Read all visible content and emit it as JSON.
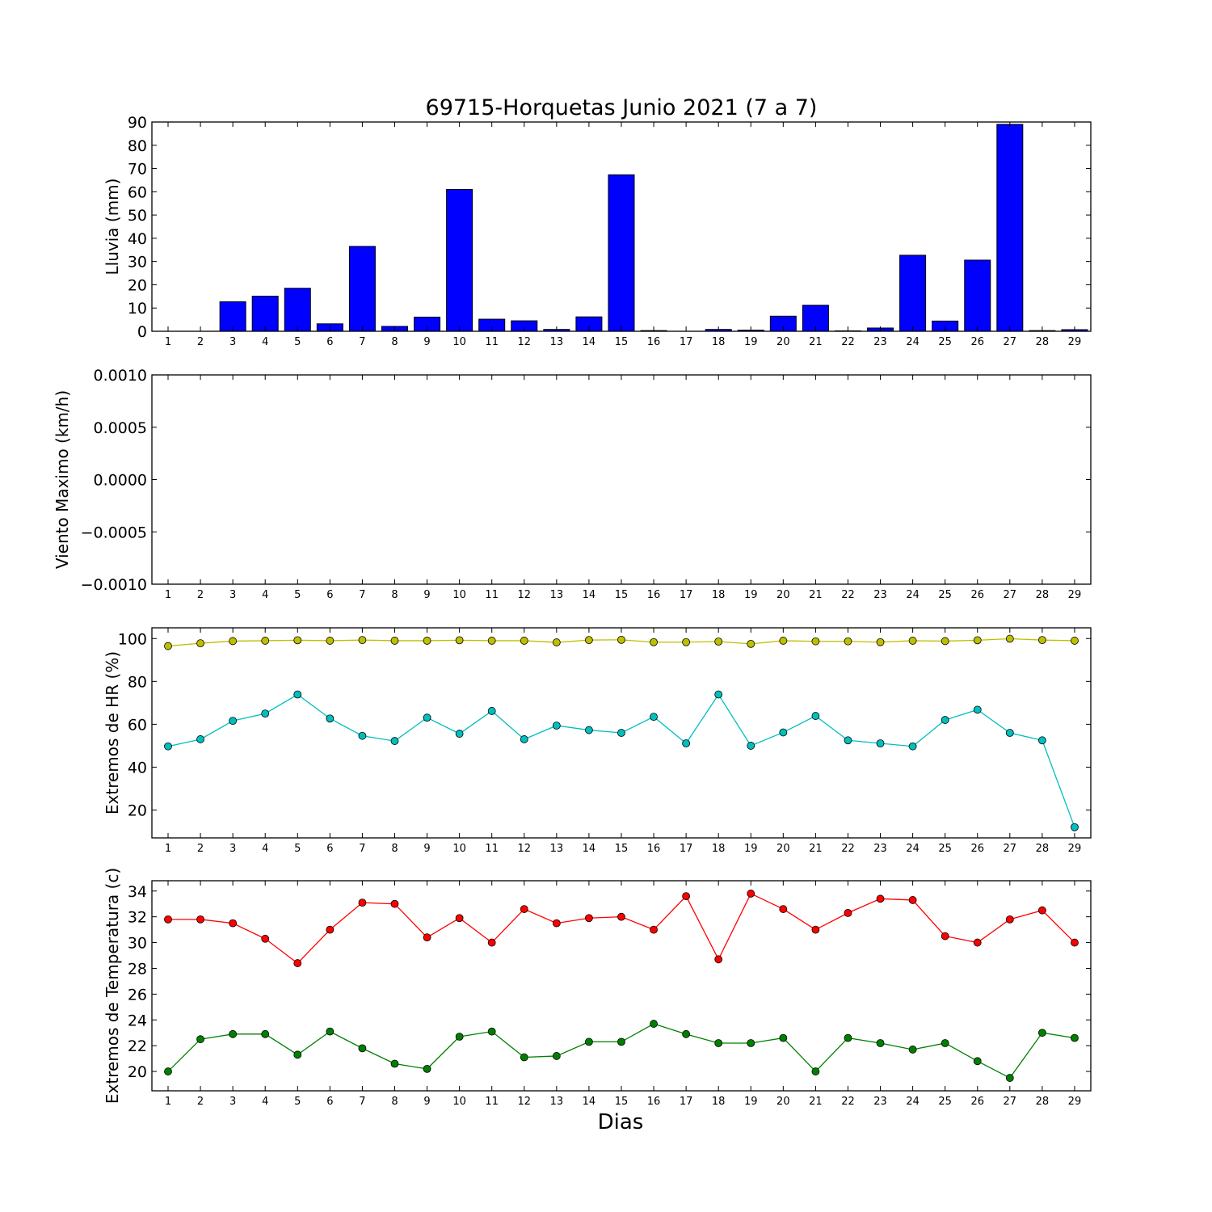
{
  "figure": {
    "title": "69715-Horquetas Junio 2021  (7 a 7)",
    "xlabel": "Dias"
  },
  "colors": {
    "rain_bar": "#0000ff",
    "hr_max": "#bfbf00",
    "hr_min": "#00bfbf",
    "temp_max": "#ff0000",
    "temp_min": "#008000"
  },
  "chart_data": [
    {
      "type": "bar",
      "ylabel": "Lluvia (mm)",
      "categories": [
        "1",
        "2",
        "3",
        "4",
        "5",
        "6",
        "7",
        "8",
        "9",
        "10",
        "11",
        "12",
        "13",
        "14",
        "15",
        "16",
        "17",
        "18",
        "19",
        "20",
        "21",
        "22",
        "23",
        "24",
        "25",
        "26",
        "27",
        "28",
        "29"
      ],
      "values": [
        0,
        0,
        12.7,
        15.1,
        18.5,
        3.2,
        36.5,
        2.1,
        6.1,
        61,
        5.2,
        4.5,
        0.8,
        6.2,
        67.3,
        0.3,
        0,
        0.8,
        0.5,
        6.5,
        11.2,
        0.2,
        1.4,
        32.7,
        4.4,
        30.6,
        89,
        0.3,
        0.7
      ],
      "ylim": [
        0,
        90
      ],
      "yticks": [
        0,
        10,
        20,
        30,
        40,
        50,
        60,
        70,
        80,
        90
      ]
    },
    {
      "type": "line",
      "ylabel": "Viento Maximo (km/h)",
      "categories": [
        "1",
        "2",
        "3",
        "4",
        "5",
        "6",
        "7",
        "8",
        "9",
        "10",
        "11",
        "12",
        "13",
        "14",
        "15",
        "16",
        "17",
        "18",
        "19",
        "20",
        "21",
        "22",
        "23",
        "24",
        "25",
        "26",
        "27",
        "28",
        "29"
      ],
      "series": [],
      "ylim": [
        -0.001,
        0.001
      ],
      "yticks": [
        "−0.0010",
        "−0.0005",
        "0.0000",
        "0.0005",
        "0.0010"
      ]
    },
    {
      "type": "line",
      "ylabel": "Extremos de HR (%)",
      "categories": [
        "1",
        "2",
        "3",
        "4",
        "5",
        "6",
        "7",
        "8",
        "9",
        "10",
        "11",
        "12",
        "13",
        "14",
        "15",
        "16",
        "17",
        "18",
        "19",
        "20",
        "21",
        "22",
        "23",
        "24",
        "25",
        "26",
        "27",
        "28",
        "29"
      ],
      "series": [
        {
          "color": "#bfbf00",
          "values": [
            96.5,
            97.8,
            98.8,
            99,
            99.2,
            99,
            99.3,
            99,
            99,
            99.2,
            99,
            99,
            98.2,
            99.3,
            99.4,
            98.3,
            98.3,
            98.6,
            97.5,
            99,
            98.7,
            98.7,
            98.3,
            99,
            98.8,
            99.2,
            99.9,
            99.3,
            99
          ]
        },
        {
          "color": "#00bfbf",
          "values": [
            49.7,
            53,
            61.6,
            65,
            73.9,
            62.7,
            54.6,
            52.2,
            63.1,
            55.6,
            66.2,
            53,
            59.4,
            57.3,
            56,
            63.5,
            51.1,
            73.9,
            50,
            56.2,
            63.9,
            52.5,
            51.1,
            49.7,
            62,
            66.8,
            56,
            52.5,
            12
          ]
        }
      ],
      "ylim": [
        7,
        105
      ],
      "yticks": [
        20,
        40,
        60,
        80,
        100
      ]
    },
    {
      "type": "line",
      "ylabel": "Extremos de Temperatura (c)",
      "categories": [
        "1",
        "2",
        "3",
        "4",
        "5",
        "6",
        "7",
        "8",
        "9",
        "10",
        "11",
        "12",
        "13",
        "14",
        "15",
        "16",
        "17",
        "18",
        "19",
        "20",
        "21",
        "22",
        "23",
        "24",
        "25",
        "26",
        "27",
        "28",
        "29"
      ],
      "series": [
        {
          "color": "#ff0000",
          "values": [
            31.8,
            31.8,
            31.5,
            30.3,
            28.4,
            31,
            33.1,
            33,
            30.4,
            31.9,
            30,
            32.6,
            31.5,
            31.9,
            32,
            31,
            33.6,
            28.7,
            33.8,
            32.6,
            31,
            32.3,
            33.4,
            33.3,
            30.5,
            30,
            31.8,
            32.5,
            30
          ]
        },
        {
          "color": "#008000",
          "values": [
            20,
            22.5,
            22.9,
            22.9,
            21.3,
            23.1,
            21.8,
            20.6,
            20.2,
            22.7,
            23.1,
            21.1,
            21.2,
            22.3,
            22.3,
            23.7,
            22.9,
            22.2,
            22.2,
            22.6,
            20,
            22.6,
            22.2,
            21.7,
            22.2,
            20.8,
            19.5,
            23,
            22.6
          ]
        }
      ],
      "ylim": [
        18.5,
        34.8
      ],
      "yticks": [
        20,
        22,
        24,
        26,
        28,
        30,
        32,
        34
      ]
    }
  ]
}
